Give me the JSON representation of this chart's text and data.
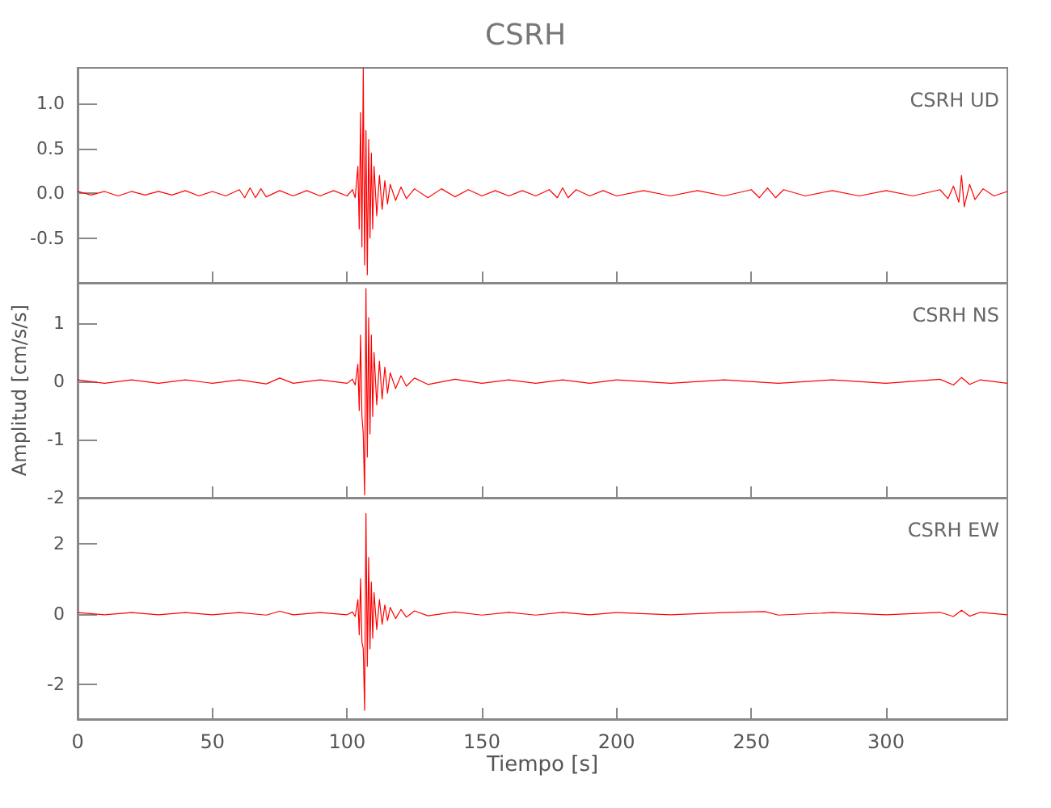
{
  "chart_data": [
    {
      "type": "line",
      "title": "CSRH",
      "annotations": [
        "CSRH UD"
      ],
      "xlim": [
        0,
        345
      ],
      "xticks": [
        0,
        50,
        100,
        150,
        200,
        250,
        300
      ],
      "ylim": [
        -1.0,
        1.4
      ],
      "yticks": [
        -0.5,
        {
          "value": 0,
          "label": "0.0"
        },
        0.5,
        {
          "value": 1,
          "label": "1.0"
        }
      ],
      "tick_labels": "y",
      "grid": false,
      "marker": "none",
      "line_style": "solid",
      "x": [
        0,
        5,
        10,
        15,
        20,
        25,
        30,
        35,
        40,
        45,
        50,
        55,
        60,
        62,
        64,
        66,
        68,
        70,
        75,
        80,
        85,
        90,
        95,
        100,
        102,
        103,
        104,
        104.5,
        105,
        105.5,
        106,
        106.5,
        107,
        107.5,
        108,
        108.5,
        109,
        109.5,
        110,
        111,
        112,
        113,
        114,
        115,
        116,
        118,
        120,
        122,
        125,
        130,
        135,
        140,
        145,
        150,
        155,
        160,
        165,
        170,
        175,
        178,
        180,
        182,
        185,
        190,
        195,
        200,
        210,
        220,
        230,
        240,
        250,
        253,
        256,
        259,
        262,
        270,
        280,
        290,
        300,
        310,
        320,
        323,
        325,
        327,
        328,
        329,
        331,
        333,
        336,
        340,
        345
      ],
      "series": [
        {
          "color": "#ff0000",
          "values": [
            0.02,
            -0.02,
            0.02,
            -0.03,
            0.02,
            -0.02,
            0.02,
            -0.02,
            0.03,
            -0.03,
            0.02,
            -0.03,
            0.04,
            -0.05,
            0.06,
            -0.05,
            0.05,
            -0.04,
            0.03,
            -0.03,
            0.03,
            -0.03,
            0.03,
            -0.03,
            0.04,
            -0.05,
            0.3,
            -0.4,
            0.9,
            -0.6,
            1.4,
            -0.8,
            0.7,
            -0.91,
            0.6,
            -0.5,
            0.45,
            -0.4,
            0.3,
            -0.25,
            0.2,
            -0.18,
            0.14,
            -0.12,
            0.1,
            -0.08,
            0.07,
            -0.06,
            0.05,
            -0.05,
            0.05,
            -0.04,
            0.04,
            -0.03,
            0.03,
            -0.03,
            0.03,
            -0.03,
            0.04,
            -0.05,
            0.06,
            -0.05,
            0.04,
            -0.03,
            0.03,
            -0.03,
            0.03,
            -0.03,
            0.03,
            -0.03,
            0.04,
            -0.05,
            0.06,
            -0.05,
            0.04,
            -0.03,
            0.03,
            -0.03,
            0.03,
            -0.03,
            0.04,
            -0.06,
            0.08,
            -0.1,
            0.2,
            -0.15,
            0.1,
            -0.07,
            0.05,
            -0.03,
            0.02
          ]
        }
      ]
    },
    {
      "type": "line",
      "ylabel": "Amplitud [cm/s/s]",
      "annotations": [
        "CSRH NS"
      ],
      "xlim": [
        0,
        345
      ],
      "xticks": [
        0,
        50,
        100,
        150,
        200,
        250,
        300
      ],
      "ylim": [
        -2,
        1.7
      ],
      "yticks": [
        -2,
        -1,
        0,
        1
      ],
      "tick_labels": "y",
      "grid": false,
      "marker": "none",
      "line_style": "solid",
      "x": [
        0,
        10,
        20,
        30,
        40,
        50,
        60,
        70,
        75,
        80,
        90,
        100,
        102,
        103,
        104,
        104.5,
        105,
        105.5,
        106,
        106.5,
        107,
        107.5,
        108,
        108.5,
        109,
        109.5,
        110,
        111,
        112,
        113,
        114,
        115,
        116,
        118,
        120,
        122,
        125,
        130,
        140,
        150,
        160,
        170,
        180,
        190,
        200,
        220,
        240,
        260,
        280,
        300,
        320,
        325,
        328,
        331,
        335,
        345
      ],
      "series": [
        {
          "color": "#ff0000",
          "values": [
            0.03,
            -0.03,
            0.03,
            -0.03,
            0.03,
            -0.03,
            0.03,
            -0.04,
            0.06,
            -0.03,
            0.03,
            -0.03,
            0.04,
            -0.06,
            0.3,
            -0.5,
            0.8,
            -0.6,
            -0.9,
            -1.95,
            1.6,
            -1.3,
            1.1,
            -0.9,
            0.8,
            -0.6,
            0.5,
            -0.4,
            0.35,
            -0.3,
            0.25,
            -0.2,
            0.15,
            -0.12,
            0.1,
            -0.08,
            0.06,
            -0.05,
            0.04,
            -0.03,
            0.03,
            -0.03,
            0.03,
            -0.03,
            0.03,
            -0.03,
            0.03,
            -0.03,
            0.03,
            -0.03,
            0.04,
            -0.06,
            0.07,
            -0.05,
            0.03,
            -0.03
          ]
        }
      ]
    },
    {
      "type": "line",
      "xlabel": "Tiempo [s]",
      "annotations": [
        "CSRH EW"
      ],
      "xlim": [
        0,
        345
      ],
      "xticks": [
        0,
        50,
        100,
        150,
        200,
        250,
        300
      ],
      "ylim": [
        -3,
        3.3
      ],
      "yticks": [
        -2,
        0,
        2
      ],
      "grid": false,
      "marker": "none",
      "line_style": "solid",
      "x": [
        0,
        10,
        20,
        30,
        40,
        50,
        60,
        70,
        75,
        80,
        90,
        100,
        102,
        103,
        104,
        104.5,
        105,
        105.5,
        106,
        106.5,
        107,
        107.5,
        108,
        108.5,
        109,
        109.5,
        110,
        111,
        112,
        113,
        114,
        115,
        116,
        118,
        120,
        122,
        125,
        130,
        140,
        150,
        160,
        170,
        180,
        190,
        200,
        220,
        240,
        255,
        260,
        280,
        300,
        320,
        325,
        328,
        331,
        335,
        345
      ],
      "series": [
        {
          "color": "#ff0000",
          "values": [
            0.03,
            -0.03,
            0.03,
            -0.03,
            0.03,
            -0.03,
            0.03,
            -0.04,
            0.07,
            -0.03,
            0.03,
            -0.03,
            0.05,
            -0.08,
            0.4,
            -0.6,
            1.0,
            -0.8,
            -1.0,
            -2.75,
            2.85,
            -1.5,
            1.6,
            -1.0,
            0.9,
            -0.7,
            0.6,
            -0.45,
            0.4,
            -0.3,
            0.25,
            -0.2,
            0.18,
            -0.14,
            0.12,
            -0.1,
            0.08,
            -0.06,
            0.05,
            -0.04,
            0.04,
            -0.04,
            0.04,
            -0.03,
            0.03,
            -0.03,
            0.03,
            0.06,
            -0.04,
            0.03,
            -0.03,
            0.04,
            -0.08,
            0.1,
            -0.07,
            0.04,
            -0.03
          ]
        }
      ]
    }
  ]
}
